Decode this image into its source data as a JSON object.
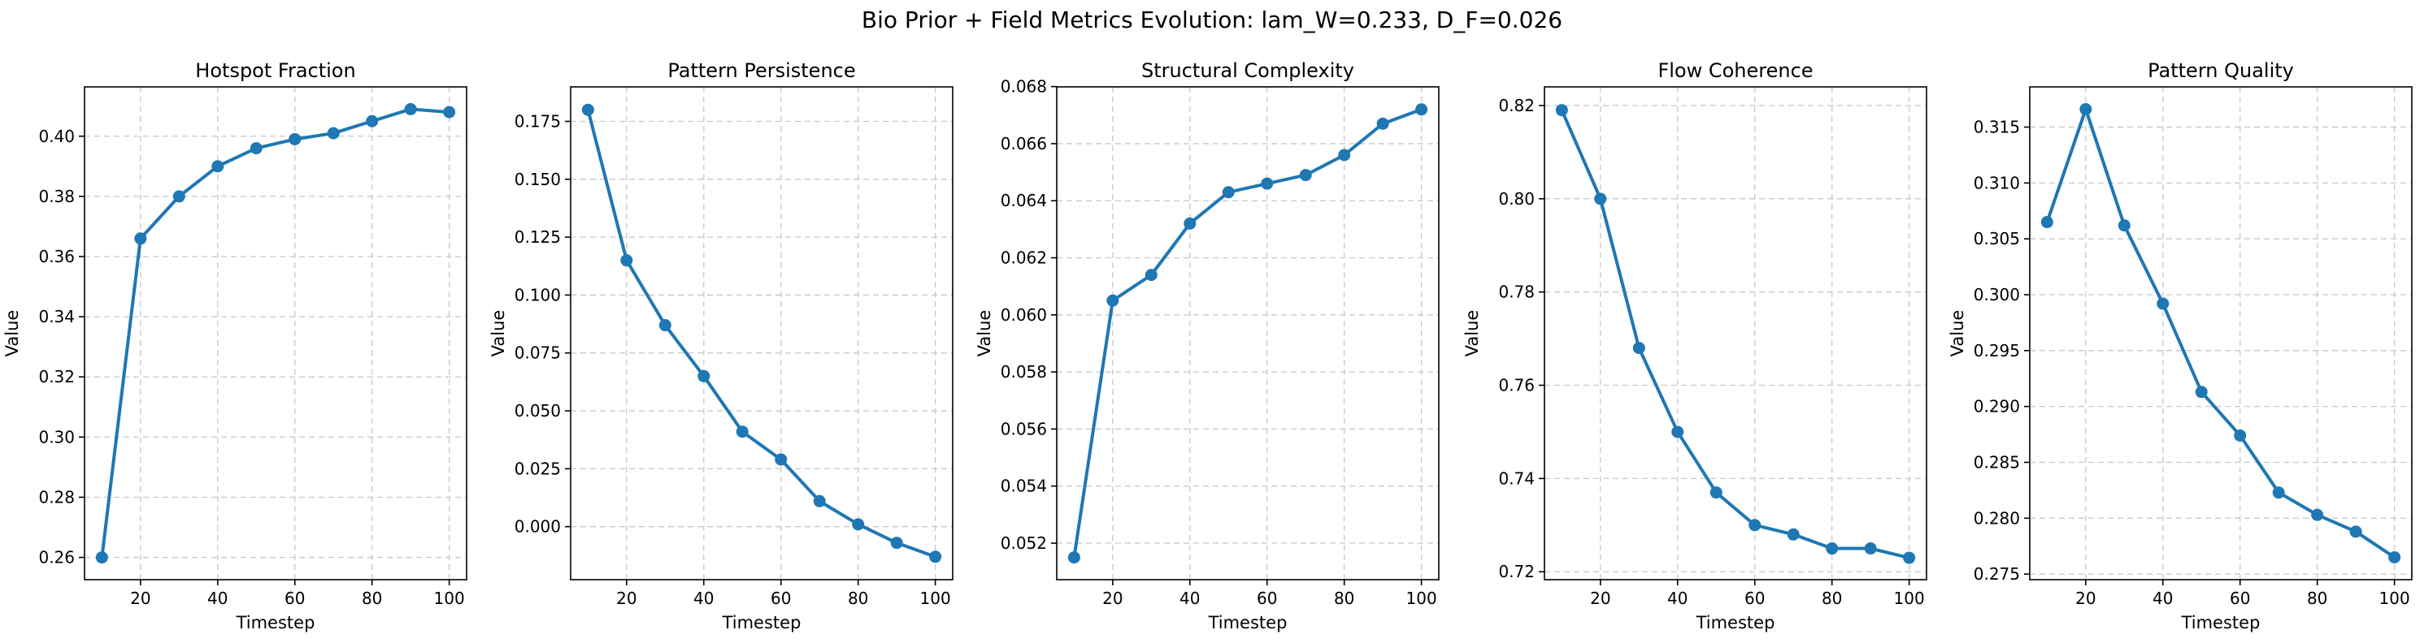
{
  "figure": {
    "title": "Bio Prior + Field Metrics Evolution: lam_W=0.233, D_F=0.026"
  },
  "colors": {
    "series": "#1f77b4",
    "grid": "#c8c8c8",
    "axis": "#000000"
  },
  "chart_data": [
    {
      "type": "line",
      "title": "Hotspot Fraction",
      "xlabel": "Timestep",
      "ylabel": "Value",
      "grid": true,
      "x": [
        10,
        20,
        30,
        40,
        50,
        60,
        70,
        80,
        90,
        100
      ],
      "series": [
        {
          "values": [
            0.26,
            0.366,
            0.38,
            0.39,
            0.396,
            0.399,
            0.401,
            0.405,
            0.409,
            0.408
          ]
        }
      ],
      "xlim": [
        5.5,
        104.5
      ],
      "ylim": [
        0.2526,
        0.4164
      ],
      "xticks": [
        20,
        40,
        60,
        80,
        100
      ],
      "xticklabels": [
        "20",
        "40",
        "60",
        "80",
        "100"
      ],
      "yticks": [
        0.26,
        0.28,
        0.3,
        0.32,
        0.34,
        0.36,
        0.38,
        0.4
      ],
      "yticklabels": [
        "0.26",
        "0.28",
        "0.30",
        "0.32",
        "0.34",
        "0.36",
        "0.38",
        "0.40"
      ]
    },
    {
      "type": "line",
      "title": "Pattern Persistence",
      "xlabel": "Timestep",
      "ylabel": "Value",
      "grid": true,
      "x": [
        10,
        20,
        30,
        40,
        50,
        60,
        70,
        80,
        90,
        100
      ],
      "series": [
        {
          "values": [
            0.18,
            0.115,
            0.087,
            0.065,
            0.041,
            0.029,
            0.011,
            0.001,
            -0.007,
            -0.013
          ]
        }
      ],
      "xlim": [
        5.5,
        104.5
      ],
      "ylim": [
        -0.0229,
        0.1899
      ],
      "xticks": [
        20,
        40,
        60,
        80,
        100
      ],
      "xticklabels": [
        "20",
        "40",
        "60",
        "80",
        "100"
      ],
      "yticks": [
        0.0,
        0.025,
        0.05,
        0.075,
        0.1,
        0.125,
        0.15,
        0.175
      ],
      "yticklabels": [
        "0.000",
        "0.025",
        "0.050",
        "0.075",
        "0.100",
        "0.125",
        "0.150",
        "0.175"
      ]
    },
    {
      "type": "line",
      "title": "Structural Complexity",
      "xlabel": "Timestep",
      "ylabel": "Value",
      "grid": true,
      "x": [
        10,
        20,
        30,
        40,
        50,
        60,
        70,
        80,
        90,
        100
      ],
      "series": [
        {
          "values": [
            0.0515,
            0.0605,
            0.0614,
            0.0632,
            0.0643,
            0.0646,
            0.0649,
            0.0656,
            0.0667,
            0.0672
          ]
        }
      ],
      "xlim": [
        5.5,
        104.5
      ],
      "ylim": [
        0.05072,
        0.06799
      ],
      "xticks": [
        20,
        40,
        60,
        80,
        100
      ],
      "xticklabels": [
        "20",
        "40",
        "60",
        "80",
        "100"
      ],
      "yticks": [
        0.052,
        0.054,
        0.056,
        0.058,
        0.06,
        0.062,
        0.064,
        0.066,
        0.068
      ],
      "yticklabels": [
        "0.052",
        "0.054",
        "0.056",
        "0.058",
        "0.060",
        "0.062",
        "0.064",
        "0.066",
        "0.068"
      ]
    },
    {
      "type": "line",
      "title": "Flow Coherence",
      "xlabel": "Timestep",
      "ylabel": "Value",
      "grid": true,
      "x": [
        10,
        20,
        30,
        40,
        50,
        60,
        70,
        80,
        90,
        100
      ],
      "series": [
        {
          "values": [
            0.819,
            0.8,
            0.768,
            0.75,
            0.737,
            0.73,
            0.728,
            0.725,
            0.725,
            0.723
          ]
        }
      ],
      "xlim": [
        5.5,
        104.5
      ],
      "ylim": [
        0.7183,
        0.824
      ],
      "xticks": [
        20,
        40,
        60,
        80,
        100
      ],
      "xticklabels": [
        "20",
        "40",
        "60",
        "80",
        "100"
      ],
      "yticks": [
        0.72,
        0.74,
        0.76,
        0.78,
        0.8,
        0.82
      ],
      "yticklabels": [
        "0.72",
        "0.74",
        "0.76",
        "0.78",
        "0.80",
        "0.82"
      ]
    },
    {
      "type": "line",
      "title": "Pattern Quality",
      "xlabel": "Timestep",
      "ylabel": "Value",
      "grid": true,
      "x": [
        10,
        20,
        30,
        40,
        50,
        60,
        70,
        80,
        90,
        100
      ],
      "series": [
        {
          "values": [
            0.3065,
            0.3166,
            0.3062,
            0.2992,
            0.2913,
            0.2874,
            0.2823,
            0.2803,
            0.2788,
            0.2765
          ]
        }
      ],
      "xlim": [
        5.5,
        104.5
      ],
      "ylim": [
        0.2745,
        0.3186
      ],
      "xticks": [
        20,
        40,
        60,
        80,
        100
      ],
      "xticklabels": [
        "20",
        "40",
        "60",
        "80",
        "100"
      ],
      "yticks": [
        0.275,
        0.28,
        0.285,
        0.29,
        0.295,
        0.3,
        0.305,
        0.31,
        0.315
      ],
      "yticklabels": [
        "0.275",
        "0.280",
        "0.285",
        "0.290",
        "0.295",
        "0.300",
        "0.305",
        "0.310",
        "0.315"
      ]
    }
  ]
}
